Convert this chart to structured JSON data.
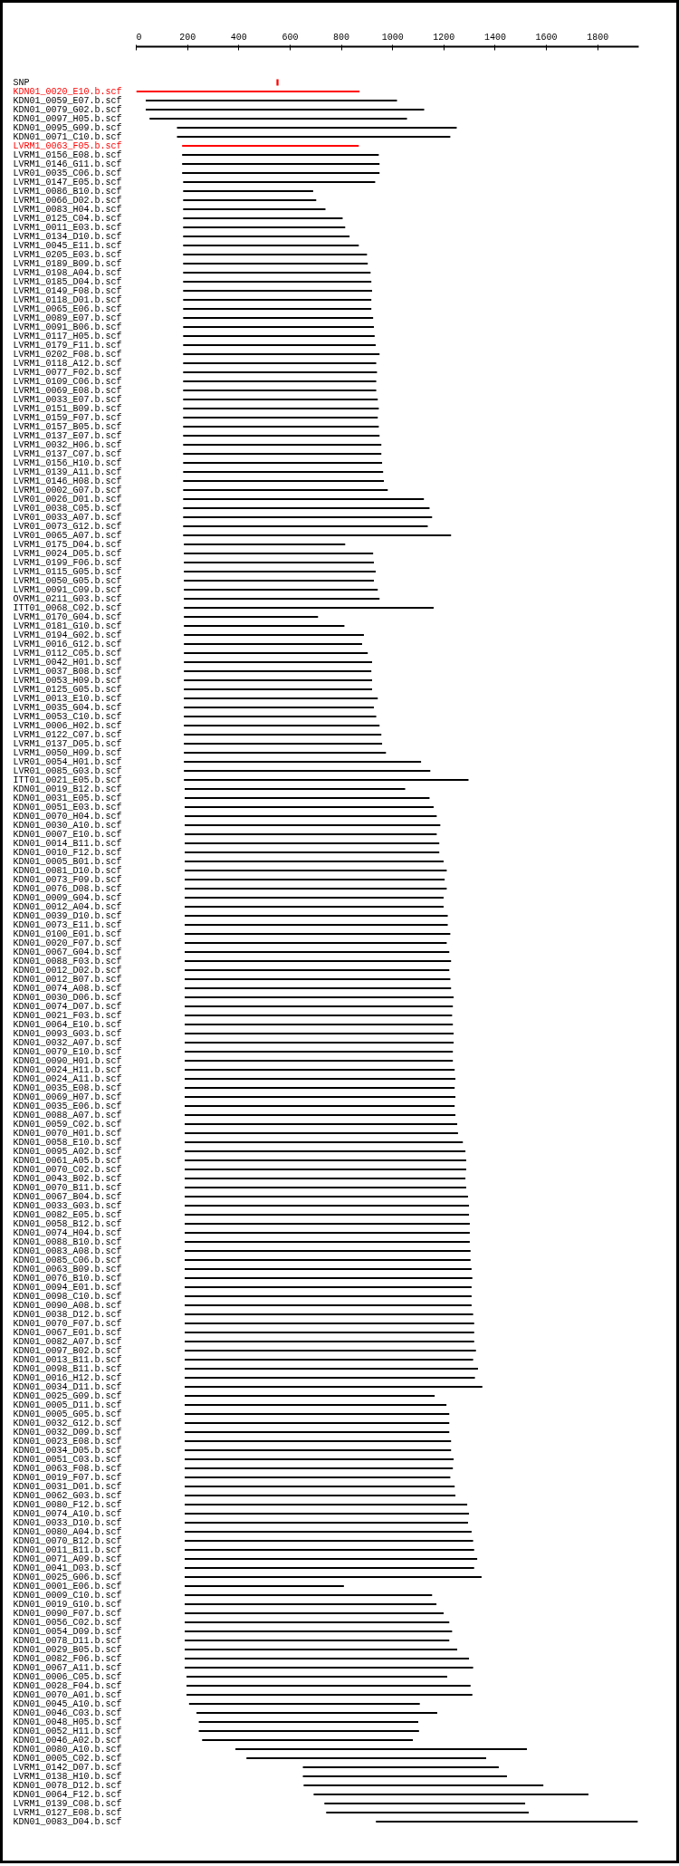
{
  "chart_data": {
    "type": "bar",
    "orientation": "horizontal",
    "xlim": [
      0,
      1960
    ],
    "xticks": [
      0,
      200,
      400,
      600,
      800,
      1000,
      1200,
      1400,
      1600,
      1800
    ],
    "categories": [
      "SNP",
      "KDN01_0020_E10.b.scf",
      "KDN01_0059_E07.b.scf",
      "KDN01_0079_G02.b.scf",
      "KDN01_0097_H05.b.scf",
      "KDN01_0095_G09.b.scf",
      "KDN01_0071_C10.b.scf",
      "LVRM1_0063_F05.b.scf",
      "LVRM1_0156_E08.b.scf",
      "LVRM1_0146_G11.b.scf",
      "LVR01_0035_C06.b.scf",
      "LVRM1_0147_E05.b.scf",
      "LVRM1_0086_B10.b.scf",
      "LVRM1_0066_D02.b.scf",
      "LVRM1_0083_H04.b.scf",
      "LVRM1_0125_C04.b.scf",
      "LVRM1_0011_E03.b.scf",
      "LVRM1_0134_D10.b.scf",
      "LVRM1_0045_E11.b.scf",
      "LVRM1_0205_E03.b.scf",
      "LVRM1_0189_B09.b.scf",
      "LVRM1_0198_A04.b.scf",
      "LVRM1_0185_D04.b.scf",
      "LVRM1_0149_F08.b.scf",
      "LVRM1_0118_D01.b.scf",
      "LVRM1_0065_E06.b.scf",
      "LVRM1_0089_E07.b.scf",
      "LVRM1_0091_B06.b.scf",
      "LVRM1_0117_H05.b.scf",
      "LVRM1_0179_F11.b.scf",
      "LVRM1_0202_F08.b.scf",
      "LVRM1_0118_A12.b.scf",
      "LVRM1_0077_F02.b.scf",
      "LVRM1_0109_C06.b.scf",
      "LVRM1_0069_E08.b.scf",
      "LVRM1_0033_E07.b.scf",
      "LVRM1_0151_B09.b.scf",
      "LVRM1_0159_F07.b.scf",
      "LVRM1_0157_B05.b.scf",
      "LVRM1_0137_E07.b.scf",
      "LVRM1_0032_H06.b.scf",
      "LVRM1_0137_C07.b.scf",
      "LVRM1_0156_H10.b.scf",
      "LVRM1_0139_A11.b.scf",
      "LVRM1_0146_H08.b.scf",
      "LVRM1_0002_G07.b.scf",
      "LVR01_0026_D01.b.scf",
      "LVR01_0038_C05.b.scf",
      "LVR01_0033_A07.b.scf",
      "LVR01_0073_G12.b.scf",
      "LVR01_0065_A07.b.scf",
      "LVRM1_0175_D04.b.scf",
      "LVRM1_0024_D05.b.scf",
      "LVRM1_0199_F06.b.scf",
      "LVRM1_0115_G05.b.scf",
      "LVRM1_0050_G05.b.scf",
      "LVRM1_0091_C09.b.scf",
      "OVRM1_0211_G03.b.scf",
      "ITT01_0068_C02.b.scf",
      "LVRM1_0170_G04.b.scf",
      "LVRM1_0181_G10.b.scf",
      "LVRM1_0194_G02.b.scf",
      "LVRM1_0016_G12.b.scf",
      "LVRM1_0112_C05.b.scf",
      "LVRM1_0042_H01.b.scf",
      "LVRM1_0037_B08.b.scf",
      "LVRM1_0053_H09.b.scf",
      "LVRM1_0125_G05.b.scf",
      "LVRM1_0013_E10.b.scf",
      "LVRM1_0035_G04.b.scf",
      "LVRM1_0053_C10.b.scf",
      "LVRM1_0006_H02.b.scf",
      "LVRM1_0122_C07.b.scf",
      "LVRM1_0137_D05.b.scf",
      "LVRM1_0050_H09.b.scf",
      "LVR01_0054_H01.b.scf",
      "LVR01_0085_G03.b.scf",
      "ITT01_0021_E05.b.scf",
      "KDN01_0019_B12.b.scf",
      "KDN01_0031_E05.b.scf",
      "KDN01_0051_E03.b.scf",
      "KDN01_0070_H04.b.scf",
      "KDN01_0030_A10.b.scf",
      "KDN01_0007_E10.b.scf",
      "KDN01_0014_B11.b.scf",
      "KDN01_0010_F12.b.scf",
      "KDN01_0005_B01.b.scf",
      "KDN01_0081_D10.b.scf",
      "KDN01_0073_F09.b.scf",
      "KDN01_0076_D08.b.scf",
      "KDN01_0009_G04.b.scf",
      "KDN01_0012_A04.b.scf",
      "KDN01_0039_D10.b.scf",
      "KDN01_0073_E11.b.scf",
      "KDN01_0100_E01.b.scf",
      "KDN01_0020_F07.b.scf",
      "KDN01_0067_G04.b.scf",
      "KDN01_0088_F03.b.scf",
      "KDN01_0012_D02.b.scf",
      "KDN01_0012_B07.b.scf",
      "KDN01_0074_A08.b.scf",
      "KDN01_0030_D06.b.scf",
      "KDN01_0074_D07.b.scf",
      "KDN01_0021_F03.b.scf",
      "KDN01_0064_E10.b.scf",
      "KDN01_0093_G03.b.scf",
      "KDN01_0032_A07.b.scf",
      "KDN01_0079_E10.b.scf",
      "KDN01_0090_H01.b.scf",
      "KDN01_0024_H11.b.scf",
      "KDN01_0024_A11.b.scf",
      "KDN01_0035_E08.b.scf",
      "KDN01_0069_H07.b.scf",
      "KDN01_0035_E06.b.scf",
      "KDN01_0088_A07.b.scf",
      "KDN01_0059_C02.b.scf",
      "KDN01_0070_H01.b.scf",
      "KDN01_0058_E10.b.scf",
      "KDN01_0095_A02.b.scf",
      "KDN01_0061_A05.b.scf",
      "KDN01_0070_C02.b.scf",
      "KDN01_0043_B02.b.scf",
      "KDN01_0070_B11.b.scf",
      "KDN01_0067_B04.b.scf",
      "KDN01_0033_G03.b.scf",
      "KDN01_0082_E05.b.scf",
      "KDN01_0058_B12.b.scf",
      "KDN01_0074_H04.b.scf",
      "KDN01_0088_B10.b.scf",
      "KDN01_0083_A08.b.scf",
      "KDN01_0085_C06.b.scf",
      "KDN01_0063_B09.b.scf",
      "KDN01_0076_B10.b.scf",
      "KDN01_0094_E01.b.scf",
      "KDN01_0098_C10.b.scf",
      "KDN01_0090_A08.b.scf",
      "KDN01_0038_D12.b.scf",
      "KDN01_0070_F07.b.scf",
      "KDN01_0067_E01.b.scf",
      "KDN01_0082_A07.b.scf",
      "KDN01_0097_B02.b.scf",
      "KDN01_0013_B11.b.scf",
      "KDN01_0098_B11.b.scf",
      "KDN01_0016_H12.b.scf",
      "KDN01_0034_D11.b.scf",
      "KDN01_0025_G09.b.scf",
      "KDN01_0005_D11.b.scf",
      "KDN01_0005_G05.b.scf",
      "KDN01_0032_G12.b.scf",
      "KDN01_0032_D09.b.scf",
      "KDN01_0023_E08.b.scf",
      "KDN01_0034_D05.b.scf",
      "KDN01_0051_C03.b.scf",
      "KDN01_0063_F08.b.scf",
      "KDN01_0019_F07.b.scf",
      "KDN01_0031_D01.b.scf",
      "KDN01_0062_G03.b.scf",
      "KDN01_0080_F12.b.scf",
      "KDN01_0074_A10.b.scf",
      "KDN01_0033_D10.b.scf",
      "KDN01_0080_A04.b.scf",
      "KDN01_0070_B12.b.scf",
      "KDN01_0011_B11.b.scf",
      "KDN01_0071_A09.b.scf",
      "KDN01_0041_D03.b.scf",
      "KDN01_0025_G06.b.scf",
      "KDN01_0001_E06.b.scf",
      "KDN01_0009_C10.b.scf",
      "KDN01_0019_G10.b.scf",
      "KDN01_0090_F07.b.scf",
      "KDN01_0056_C02.b.scf",
      "KDN01_0054_D09.b.scf",
      "KDN01_0078_D11.b.scf",
      "KDN01_0029_B05.b.scf",
      "KDN01_0082_F06.b.scf",
      "KDN01_0067_A11.b.scf",
      "KDN01_0006_C05.b.scf",
      "KDN01_0028_F04.b.scf",
      "KDN01_0070_A01.b.scf",
      "KDN01_0045_A10.b.scf",
      "KDN01_0046_C03.b.scf",
      "KDN01_0048_H05.b.scf",
      "KDN01_0052_H11.b.scf",
      "KDN01_0046_A02.b.scf",
      "KDN01_0080_A10.b.scf",
      "KDN01_0005_C02.b.scf",
      "LVRM1_0142_D07.b.scf",
      "LVRM1_0138_H10.b.scf",
      "KDN01_0078_D12.b.scf",
      "KDN01_0064_F12.b.scf",
      "LVRM1_0139_C08.b.scf",
      "LVRM1_0127_E08.b.scf",
      "KDN01_0083_D04.b.scf"
    ],
    "base": [
      547,
      0,
      37,
      37,
      52,
      159,
      159,
      179,
      179,
      179,
      179,
      183,
      183,
      183,
      183,
      183,
      183,
      183,
      183,
      183,
      183,
      183,
      183,
      183,
      183,
      183,
      183,
      183,
      183,
      183,
      183,
      183,
      183,
      183,
      183,
      183,
      183,
      183,
      183,
      183,
      183,
      183,
      183,
      183,
      183,
      183,
      183,
      183,
      183,
      183,
      183,
      186,
      186,
      186,
      186,
      186,
      186,
      186,
      186,
      186,
      186,
      186,
      186,
      186,
      186,
      186,
      186,
      186,
      186,
      186,
      186,
      186,
      186,
      186,
      186,
      186,
      186,
      186,
      189,
      189,
      189,
      189,
      189,
      189,
      189,
      189,
      189,
      189,
      189,
      189,
      189,
      189,
      189,
      189,
      189,
      189,
      189,
      189,
      189,
      189,
      189,
      189,
      189,
      189,
      189,
      189,
      189,
      189,
      189,
      189,
      189,
      189,
      189,
      189,
      189,
      189,
      189,
      189,
      189,
      189,
      189,
      189,
      189,
      189,
      189,
      189,
      189,
      189,
      189,
      189,
      189,
      189,
      189,
      189,
      189,
      189,
      189,
      189,
      189,
      189,
      189,
      189,
      189,
      189,
      189,
      189,
      189,
      189,
      189,
      189,
      189,
      189,
      189,
      189,
      189,
      189,
      189,
      189,
      189,
      189,
      189,
      189,
      189,
      189,
      189,
      189,
      189,
      189,
      189,
      189,
      189,
      189,
      189,
      189,
      189,
      189,
      196,
      196,
      196,
      206,
      235,
      244,
      244,
      257,
      387,
      430,
      650,
      650,
      653,
      692,
      734,
      741,
      935
    ],
    "values": [
      8,
      871,
      980,
      1086,
      1004,
      1091,
      1066,
      689,
      767,
      770,
      770,
      749,
      507,
      519,
      555,
      622,
      632,
      649,
      685,
      717,
      720,
      731,
      734,
      737,
      734,
      734,
      741,
      744,
      747,
      751,
      766,
      753,
      756,
      753,
      753,
      759,
      763,
      759,
      763,
      766,
      773,
      773,
      776,
      780,
      783,
      798,
      939,
      961,
      971,
      954,
      1045,
      629,
      738,
      741,
      748,
      741,
      756,
      763,
      974,
      523,
      626,
      702,
      695,
      717,
      734,
      731,
      734,
      734,
      756,
      741,
      750,
      763,
      770,
      773,
      788,
      925,
      961,
      1110,
      860,
      955,
      971,
      983,
      997,
      983,
      993,
      993,
      1010,
      1022,
      1014,
      1022,
      1010,
      1010,
      1026,
      1026,
      1036,
      1022,
      1032,
      1039,
      1032,
      1036,
      1039,
      1049,
      1046,
      1043,
      1046,
      1049,
      1049,
      1046,
      1046,
      1053,
      1056,
      1053,
      1056,
      1053,
      1056,
      1063,
      1066,
      1085,
      1095,
      1098,
      1098,
      1095,
      1098,
      1105,
      1109,
      1109,
      1112,
      1112,
      1112,
      1115,
      1115,
      1119,
      1122,
      1119,
      1119,
      1119,
      1125,
      1129,
      1129,
      1129,
      1136,
      1125,
      1144,
      1132,
      1161,
      975,
      1021,
      1032,
      1032,
      1032,
      1039,
      1039,
      1049,
      1046,
      1036,
      1053,
      1056,
      1102,
      1109,
      1105,
      1119,
      1125,
      1129,
      1141,
      1129,
      1158,
      621,
      965,
      982,
      1010,
      1032,
      1043,
      1032,
      1063,
      1109,
      1125,
      1017,
      1108,
      1115,
      900,
      939,
      856,
      859,
      822,
      1137,
      935,
      764,
      796,
      935,
      1072,
      783,
      790,
      1021
    ],
    "colors": [
      "#ff0000",
      "#ff0000",
      "#000000",
      "#000000",
      "#000000",
      "#000000",
      "#000000",
      "#ff0000",
      "#000000",
      "#000000",
      "#000000",
      "#000000",
      "#000000",
      "#000000",
      "#000000",
      "#000000",
      "#000000",
      "#000000",
      "#000000",
      "#000000",
      "#000000",
      "#000000",
      "#000000",
      "#000000",
      "#000000",
      "#000000",
      "#000000",
      "#000000",
      "#000000",
      "#000000",
      "#000000",
      "#000000",
      "#000000",
      "#000000",
      "#000000",
      "#000000",
      "#000000",
      "#000000",
      "#000000",
      "#000000",
      "#000000",
      "#000000",
      "#000000",
      "#000000",
      "#000000",
      "#000000",
      "#000000",
      "#000000",
      "#000000",
      "#000000",
      "#000000",
      "#000000",
      "#000000",
      "#000000",
      "#000000",
      "#000000",
      "#000000",
      "#000000",
      "#000000",
      "#000000",
      "#000000",
      "#000000",
      "#000000",
      "#000000",
      "#000000",
      "#000000",
      "#000000",
      "#000000",
      "#000000",
      "#000000",
      "#000000",
      "#000000",
      "#000000",
      "#000000",
      "#000000",
      "#000000",
      "#000000",
      "#000000",
      "#000000",
      "#000000",
      "#000000",
      "#000000",
      "#000000",
      "#000000",
      "#000000",
      "#000000",
      "#000000",
      "#000000",
      "#000000",
      "#000000",
      "#000000",
      "#000000",
      "#000000",
      "#000000",
      "#000000",
      "#000000",
      "#000000",
      "#000000",
      "#000000",
      "#000000",
      "#000000",
      "#000000",
      "#000000",
      "#000000",
      "#000000",
      "#000000",
      "#000000",
      "#000000",
      "#000000",
      "#000000",
      "#000000",
      "#000000",
      "#000000",
      "#000000",
      "#000000",
      "#000000",
      "#000000",
      "#000000",
      "#000000",
      "#000000",
      "#000000",
      "#000000",
      "#000000",
      "#000000",
      "#000000",
      "#000000",
      "#000000",
      "#000000",
      "#000000",
      "#000000",
      "#000000",
      "#000000",
      "#000000",
      "#000000",
      "#000000",
      "#000000",
      "#000000",
      "#000000",
      "#000000",
      "#000000",
      "#000000",
      "#000000",
      "#000000",
      "#000000",
      "#000000",
      "#000000",
      "#000000",
      "#000000",
      "#000000",
      "#000000",
      "#000000",
      "#000000",
      "#000000",
      "#000000",
      "#000000",
      "#000000",
      "#000000",
      "#000000",
      "#000000",
      "#000000",
      "#000000",
      "#000000",
      "#000000",
      "#000000",
      "#000000",
      "#000000",
      "#000000",
      "#000000",
      "#000000",
      "#000000",
      "#000000",
      "#000000",
      "#000000",
      "#000000",
      "#000000",
      "#000000",
      "#000000",
      "#000000",
      "#000000",
      "#000000",
      "#000000",
      "#000000",
      "#000000",
      "#000000",
      "#000000",
      "#000000",
      "#000000",
      "#000000",
      "#000000",
      "#000000",
      "#000000",
      "#000000",
      "#000000"
    ]
  }
}
